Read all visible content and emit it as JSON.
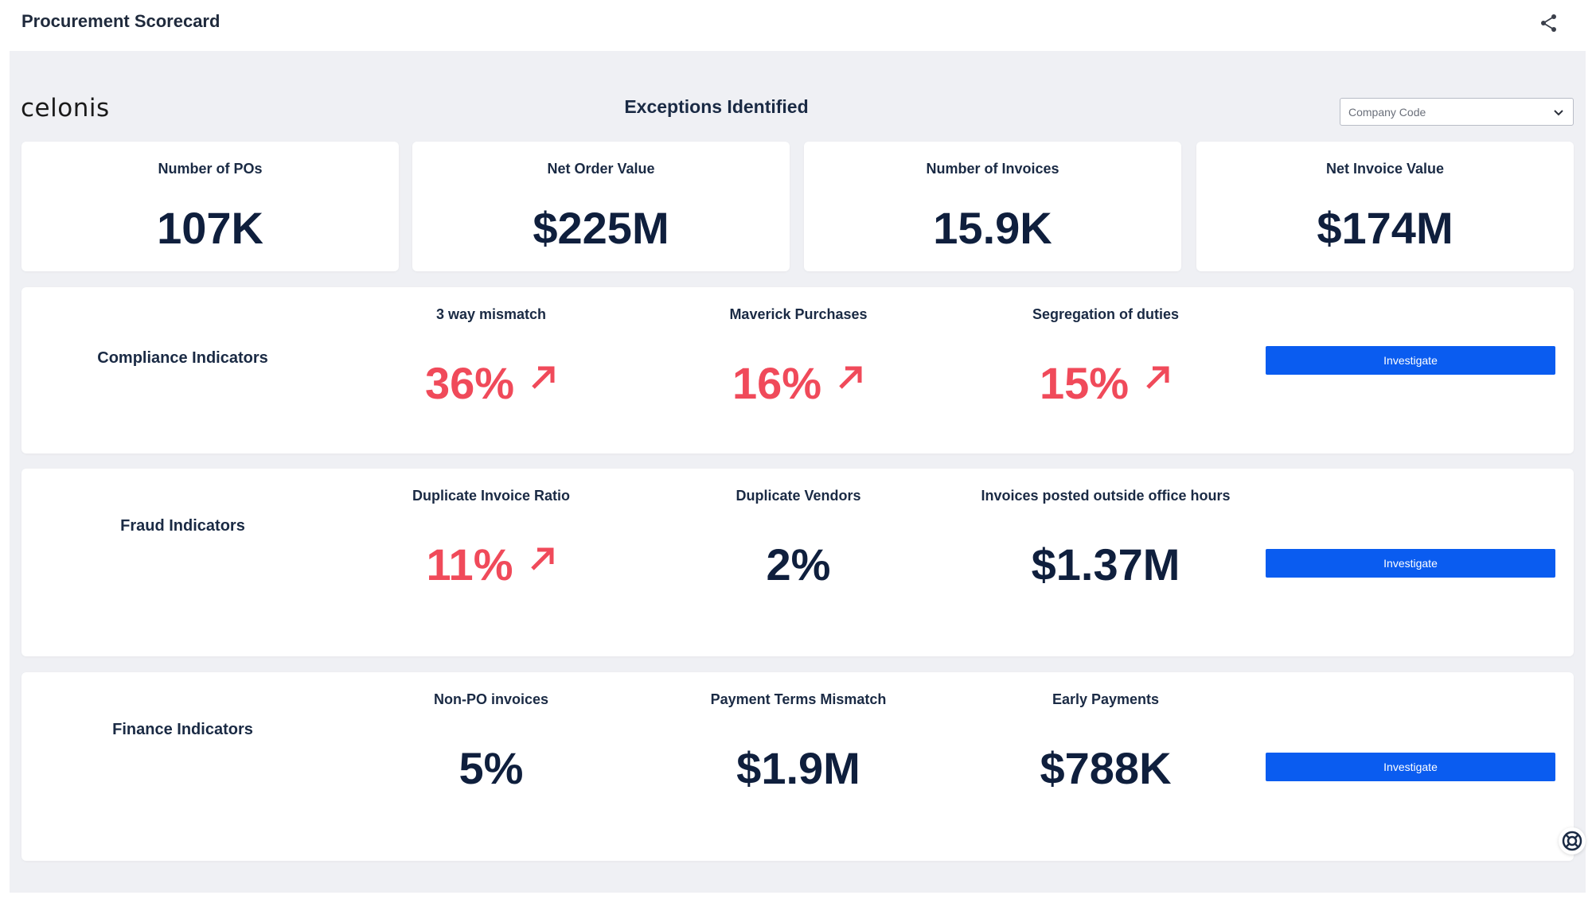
{
  "header": {
    "title": "Procurement Scorecard",
    "share_icon": "share-icon"
  },
  "logo": {
    "text": "celonis"
  },
  "section_title": "Exceptions Identified",
  "filter": {
    "label": "Company Code",
    "icon": "chevron-down-icon"
  },
  "kpis": [
    {
      "label": "Number of POs",
      "value": "107K"
    },
    {
      "label": "Net Order Value",
      "value": "$225M"
    },
    {
      "label": "Number of Invoices",
      "value": "15.9K"
    },
    {
      "label": "Net Invoice Value",
      "value": "$174M"
    }
  ],
  "panels": [
    {
      "title": "Compliance Indicators",
      "button": "Investigate",
      "metrics": [
        {
          "label": "3 way mismatch",
          "value": "36%",
          "alert": true,
          "trend": "up"
        },
        {
          "label": "Maverick Purchases",
          "value": "16%",
          "alert": true,
          "trend": "up"
        },
        {
          "label": "Segregation of duties",
          "value": "15%",
          "alert": true,
          "trend": "up"
        }
      ]
    },
    {
      "title": "Fraud Indicators",
      "button": "Investigate",
      "metrics": [
        {
          "label": "Duplicate Invoice Ratio",
          "value": "11%",
          "alert": true,
          "trend": "up"
        },
        {
          "label": "Duplicate Vendors",
          "value": "2%",
          "alert": false,
          "trend": ""
        },
        {
          "label": "Invoices posted outside office hours",
          "value": "$1.37M",
          "alert": false,
          "trend": ""
        }
      ]
    },
    {
      "title": "Finance Indicators",
      "button": "Investigate",
      "metrics": [
        {
          "label": "Non-PO invoices",
          "value": "5%",
          "alert": false,
          "trend": ""
        },
        {
          "label": "Payment Terms Mismatch",
          "value": "$1.9M",
          "alert": false,
          "trend": ""
        },
        {
          "label": "Early Payments",
          "value": "$788K",
          "alert": false,
          "trend": ""
        }
      ]
    }
  ],
  "colors": {
    "alert": "#f04a5a",
    "primary_button": "#0a5cf0",
    "value_text": "#0f1f3d",
    "canvas": "#eff0f4"
  },
  "help_icon": "help-lifebuoy-icon"
}
